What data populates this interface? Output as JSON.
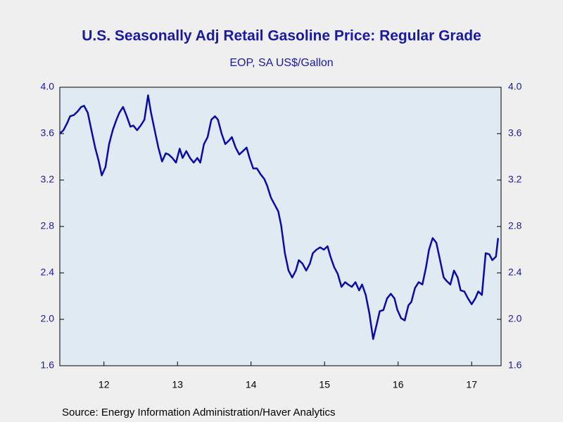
{
  "chart_data": {
    "type": "line",
    "title": "U.S. Seasonally Adj Retail Gasoline Price: Regular Grade",
    "subtitle": "EOP, SA US$/Gallon",
    "source": "Source:  Energy Information Administration/Haver Analytics",
    "xlim": [
      2011.9,
      2017.9
    ],
    "xticks": [
      {
        "value": 2012.5,
        "label": "12"
      },
      {
        "value": 2013.5,
        "label": "13"
      },
      {
        "value": 2014.5,
        "label": "14"
      },
      {
        "value": 2015.5,
        "label": "15"
      },
      {
        "value": 2016.5,
        "label": "16"
      },
      {
        "value": 2017.5,
        "label": "17"
      }
    ],
    "ylim": [
      1.6,
      4.0
    ],
    "yticks": [
      {
        "value": 1.6,
        "label": "1.6"
      },
      {
        "value": 2.0,
        "label": "2.0"
      },
      {
        "value": 2.4,
        "label": "2.4"
      },
      {
        "value": 2.8,
        "label": "2.8"
      },
      {
        "value": 3.2,
        "label": "3.2"
      },
      {
        "value": 3.6,
        "label": "3.6"
      },
      {
        "value": 4.0,
        "label": "4.0"
      }
    ],
    "grid": false,
    "x": [
      2011.9,
      2011.95,
      2012.0,
      2012.04,
      2012.09,
      2012.14,
      2012.19,
      2012.23,
      2012.28,
      2012.33,
      2012.38,
      2012.43,
      2012.47,
      2012.52,
      2012.57,
      2012.62,
      2012.67,
      2012.71,
      2012.76,
      2012.81,
      2012.86,
      2012.9,
      2012.95,
      2013.0,
      2013.05,
      2013.1,
      2013.14,
      2013.19,
      2013.24,
      2013.29,
      2013.34,
      2013.38,
      2013.43,
      2013.48,
      2013.53,
      2013.57,
      2013.62,
      2013.67,
      2013.72,
      2013.77,
      2013.81,
      2013.86,
      2013.91,
      2013.96,
      2014.01,
      2014.05,
      2014.1,
      2014.15,
      2014.2,
      2014.24,
      2014.29,
      2014.34,
      2014.39,
      2014.44,
      2014.48,
      2014.53,
      2014.58,
      2014.63,
      2014.68,
      2014.72,
      2014.77,
      2014.82,
      2014.87,
      2014.91,
      2014.96,
      2015.01,
      2015.06,
      2015.11,
      2015.15,
      2015.2,
      2015.25,
      2015.3,
      2015.34,
      2015.39,
      2015.44,
      2015.49,
      2015.54,
      2015.58,
      2015.63,
      2015.68,
      2015.73,
      2015.78,
      2015.82,
      2015.87,
      2015.92,
      2015.97,
      2016.01,
      2016.06,
      2016.11,
      2016.16,
      2016.21,
      2016.25,
      2016.3,
      2016.35,
      2016.4,
      2016.45,
      2016.49,
      2016.54,
      2016.59,
      2016.64,
      2016.68,
      2016.73,
      2016.78,
      2016.83,
      2016.88,
      2016.92,
      2016.97,
      2017.02,
      2017.07,
      2017.12,
      2017.16,
      2017.21,
      2017.26,
      2017.31,
      2017.35,
      2017.4,
      2017.45,
      2017.5,
      2017.55,
      2017.59,
      2017.64,
      2017.69,
      2017.74,
      2017.78,
      2017.83,
      2017.86
    ],
    "series": [
      {
        "color": "#0a0aa8",
        "values": [
          3.6,
          3.63,
          3.69,
          3.75,
          3.76,
          3.79,
          3.83,
          3.84,
          3.78,
          3.63,
          3.48,
          3.36,
          3.24,
          3.31,
          3.51,
          3.63,
          3.72,
          3.78,
          3.83,
          3.75,
          3.66,
          3.67,
          3.63,
          3.67,
          3.72,
          3.93,
          3.78,
          3.63,
          3.48,
          3.36,
          3.43,
          3.42,
          3.39,
          3.35,
          3.47,
          3.39,
          3.45,
          3.39,
          3.35,
          3.39,
          3.35,
          3.51,
          3.57,
          3.72,
          3.75,
          3.72,
          3.6,
          3.51,
          3.54,
          3.57,
          3.48,
          3.42,
          3.45,
          3.48,
          3.39,
          3.3,
          3.3,
          3.25,
          3.21,
          3.15,
          3.05,
          2.99,
          2.93,
          2.81,
          2.57,
          2.42,
          2.36,
          2.42,
          2.51,
          2.48,
          2.42,
          2.48,
          2.57,
          2.6,
          2.62,
          2.6,
          2.63,
          2.54,
          2.45,
          2.39,
          2.28,
          2.32,
          2.3,
          2.28,
          2.32,
          2.25,
          2.3,
          2.21,
          2.05,
          1.83,
          1.96,
          2.07,
          2.08,
          2.18,
          2.22,
          2.18,
          2.08,
          2.01,
          1.99,
          2.12,
          2.15,
          2.27,
          2.32,
          2.3,
          2.45,
          2.6,
          2.7,
          2.66,
          2.51,
          2.36,
          2.33,
          2.3,
          2.42,
          2.36,
          2.25,
          2.24,
          2.18,
          2.13,
          2.18,
          2.24,
          2.21,
          2.57,
          2.56,
          2.51,
          2.54,
          2.7
        ]
      }
    ]
  }
}
